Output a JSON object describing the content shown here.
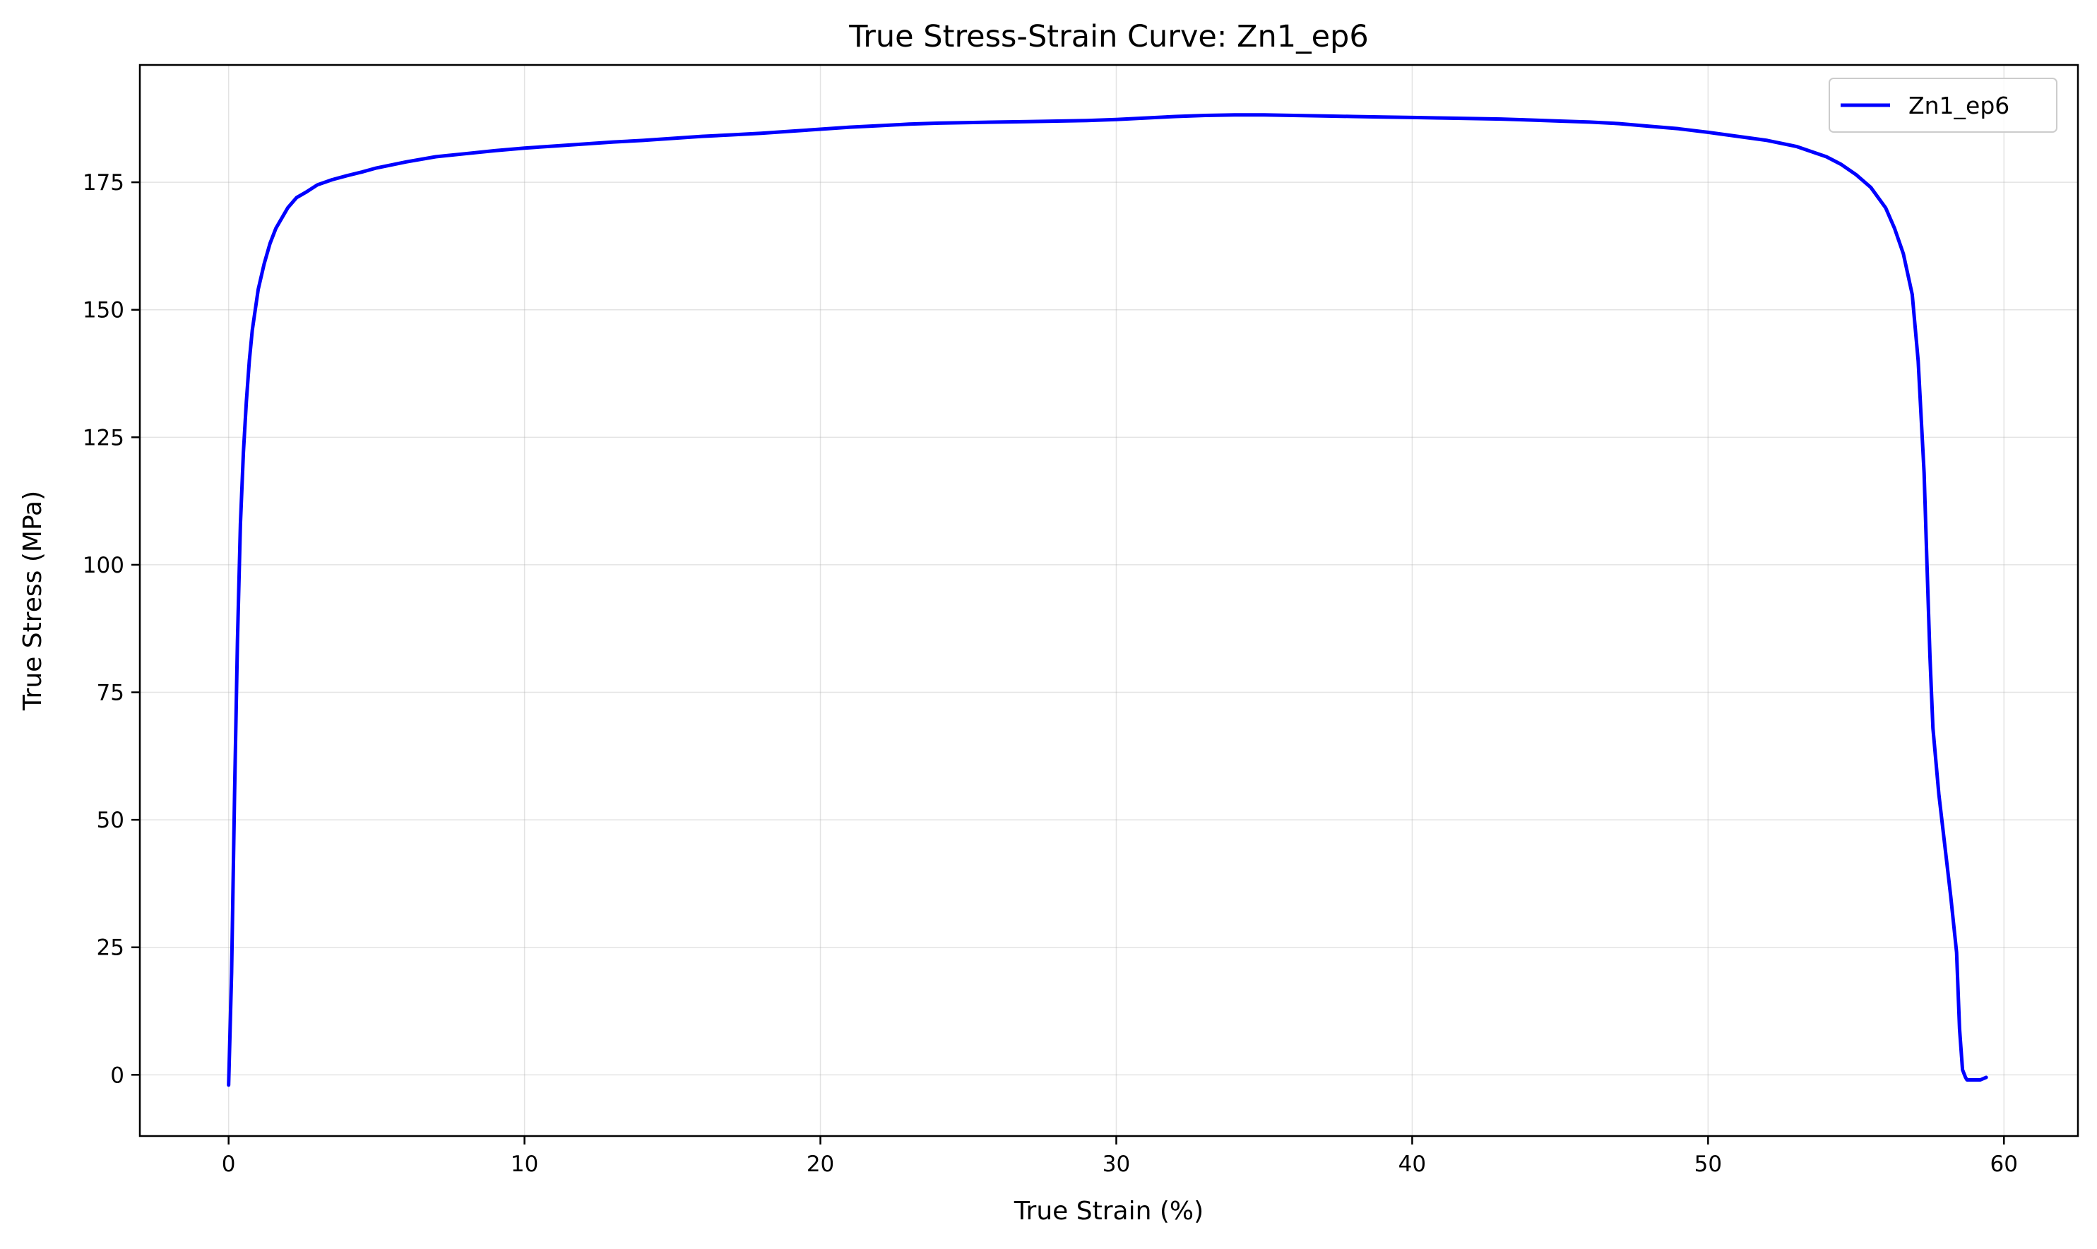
{
  "chart_data": {
    "type": "line",
    "title": "True Stress-Strain Curve: Zn1_ep6",
    "xlabel": "True Strain (%)",
    "ylabel": "True Stress (MPa)",
    "xlim": [
      -3,
      62.5
    ],
    "ylim": [
      -12,
      198
    ],
    "xticks": [
      0,
      10,
      20,
      30,
      40,
      50,
      60
    ],
    "yticks": [
      0,
      25,
      50,
      75,
      100,
      125,
      150,
      175
    ],
    "grid": true,
    "legend_position": "top-right",
    "series": [
      {
        "name": "Zn1_ep6",
        "color": "#0000ff",
        "x": [
          0.0,
          0.1,
          0.2,
          0.3,
          0.4,
          0.5,
          0.6,
          0.7,
          0.8,
          1.0,
          1.2,
          1.4,
          1.6,
          1.8,
          2.0,
          2.3,
          2.6,
          3.0,
          3.5,
          4.0,
          4.5,
          5.0,
          6.0,
          7.0,
          8.0,
          9.0,
          10.0,
          11.0,
          12.0,
          13.0,
          14.0,
          15.0,
          16.0,
          17.0,
          18.0,
          19.0,
          20.0,
          21.0,
          22.0,
          23.0,
          24.0,
          25.0,
          26.0,
          27.0,
          28.0,
          29.0,
          30.0,
          31.0,
          32.0,
          33.0,
          34.0,
          35.0,
          36.0,
          37.0,
          38.0,
          39.0,
          40.0,
          41.0,
          42.0,
          43.0,
          44.0,
          45.0,
          46.0,
          47.0,
          48.0,
          49.0,
          50.0,
          51.0,
          52.0,
          53.0,
          54.0,
          54.5,
          55.0,
          55.5,
          56.0,
          56.3,
          56.6,
          56.9,
          57.1,
          57.3,
          57.4,
          57.5,
          57.6,
          57.8,
          58.0,
          58.2,
          58.4,
          58.5,
          58.6,
          58.7,
          58.75,
          58.8,
          59.0,
          59.2,
          59.4
        ],
        "values": [
          -2,
          20,
          55,
          85,
          108,
          122,
          132,
          140,
          146,
          154,
          159,
          163,
          166,
          168,
          170,
          172,
          173,
          174.5,
          175.5,
          176.3,
          177,
          177.8,
          179,
          180,
          180.6,
          181.2,
          181.7,
          182.1,
          182.5,
          182.9,
          183.2,
          183.6,
          184,
          184.3,
          184.6,
          185,
          185.4,
          185.8,
          186.1,
          186.4,
          186.6,
          186.7,
          186.8,
          186.9,
          187,
          187.1,
          187.3,
          187.6,
          187.9,
          188.1,
          188.2,
          188.2,
          188.1,
          188,
          187.9,
          187.8,
          187.7,
          187.6,
          187.5,
          187.4,
          187.2,
          187,
          186.8,
          186.5,
          186,
          185.5,
          184.8,
          184,
          183.2,
          182,
          180,
          178.5,
          176.5,
          174,
          170,
          166,
          161,
          153,
          140,
          118,
          100,
          82,
          68,
          55,
          45,
          35,
          24,
          9,
          1,
          -0.5,
          -1,
          -1,
          -1,
          -1,
          -0.5
        ]
      }
    ]
  }
}
